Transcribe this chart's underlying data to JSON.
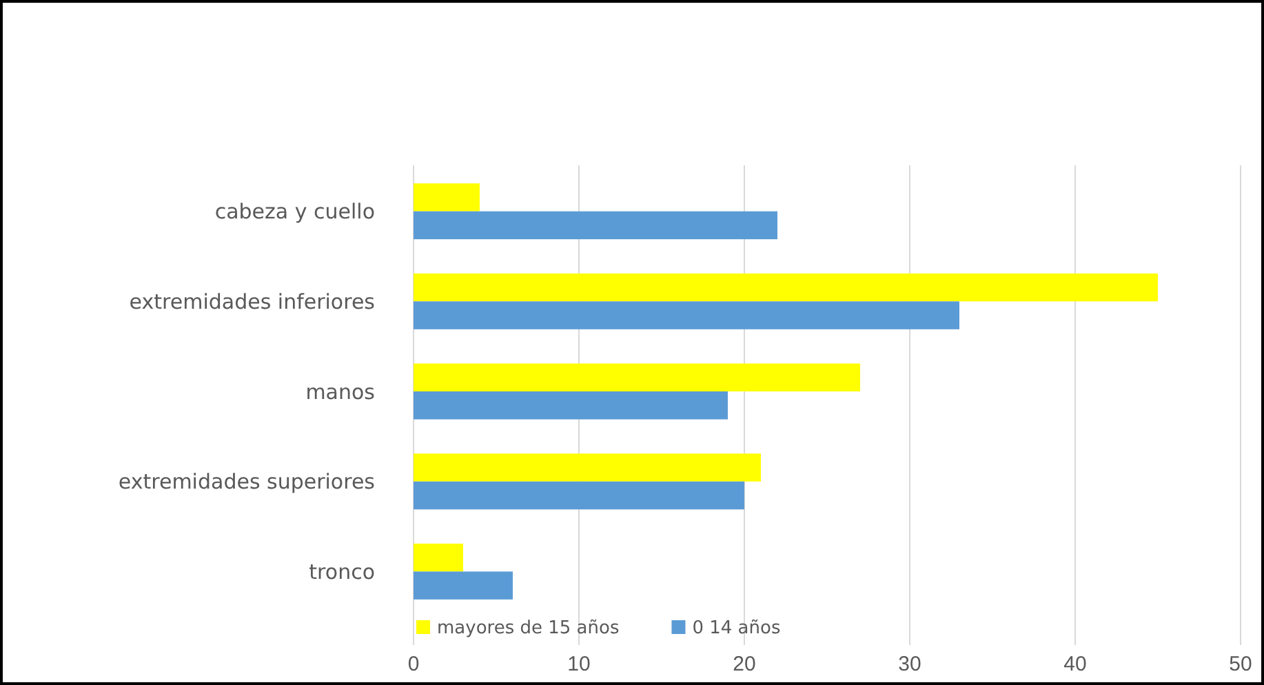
{
  "chart_data": {
    "type": "bar",
    "orientation": "horizontal",
    "categories": [
      "cabeza y cuello",
      "extremidades inferiores",
      "manos",
      "extremidades superiores",
      "tronco"
    ],
    "series": [
      {
        "name": "mayores de 15 años",
        "color": "#ffff00",
        "values": [
          4,
          45,
          27,
          21,
          3
        ]
      },
      {
        "name": "0 14 años",
        "color": "#5b9bd5",
        "values": [
          22,
          33,
          19,
          20,
          6
        ]
      }
    ],
    "xlim": [
      0,
      50
    ],
    "xticks": [
      0,
      10,
      20,
      30,
      40,
      50
    ],
    "grid": "x",
    "legend": "bottom"
  }
}
